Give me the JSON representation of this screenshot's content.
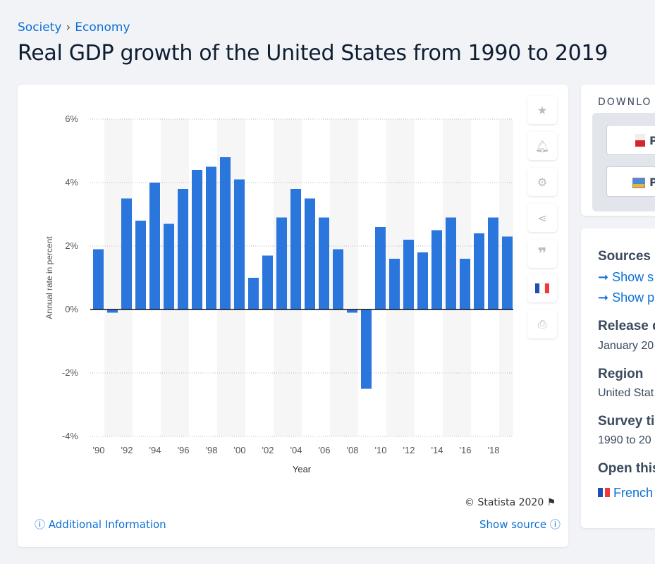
{
  "breadcrumb": {
    "items": [
      "Society",
      "Economy"
    ],
    "separator": "›"
  },
  "title": "Real GDP growth of the United States from 1990 to 2019",
  "toolbar": {
    "icons": [
      "star-icon",
      "bell-icon",
      "gear-icon",
      "share-icon",
      "quote-icon",
      "french-flag-icon",
      "print-icon"
    ]
  },
  "footer": {
    "copyright": "© Statista 2020",
    "additional_info": "Additional Information",
    "show_source": "Show source"
  },
  "download": {
    "heading": "DOWNLO",
    "buttons": [
      "P",
      "P"
    ]
  },
  "sidebar": {
    "sources_heading": "Sources",
    "source_links": [
      "Show s",
      "Show p"
    ],
    "release_heading": "Release d",
    "release_value": "January 20",
    "region_heading": "Region",
    "region_value": "United Stat",
    "survey_heading": "Survey ti",
    "survey_value": "1990 to 20",
    "open_heading": "Open this",
    "open_link": "French"
  },
  "colors": {
    "bar": "#2a76dd",
    "link": "#0c6fd6"
  },
  "chart_data": {
    "type": "bar",
    "xlabel": "Year",
    "ylabel": "Annual rate in percent",
    "ylim": [
      -4,
      6
    ],
    "yticks": [
      "6%",
      "4%",
      "2%",
      "0%",
      "-2%",
      "-4%"
    ],
    "ytick_values": [
      6,
      4,
      2,
      0,
      -2,
      -4
    ],
    "xtick_labels": [
      "'90",
      "'92",
      "'94",
      "'96",
      "'98",
      "'00",
      "'02",
      "'04",
      "'06",
      "'08",
      "'10",
      "'12",
      "'14",
      "'16",
      "'18"
    ],
    "categories": [
      1990,
      1991,
      1992,
      1993,
      1994,
      1995,
      1996,
      1997,
      1998,
      1999,
      2000,
      2001,
      2002,
      2003,
      2004,
      2005,
      2006,
      2007,
      2008,
      2009,
      2010,
      2011,
      2012,
      2013,
      2014,
      2015,
      2016,
      2017,
      2018,
      2019
    ],
    "values": [
      1.9,
      -0.1,
      3.5,
      2.8,
      4.0,
      2.7,
      3.8,
      4.4,
      4.5,
      4.8,
      4.1,
      1.0,
      1.7,
      2.9,
      3.8,
      3.5,
      2.9,
      1.9,
      -0.1,
      -2.5,
      2.6,
      1.6,
      2.2,
      1.8,
      2.5,
      2.9,
      1.6,
      2.4,
      2.9,
      2.3
    ],
    "grid": true,
    "legend": "none"
  }
}
